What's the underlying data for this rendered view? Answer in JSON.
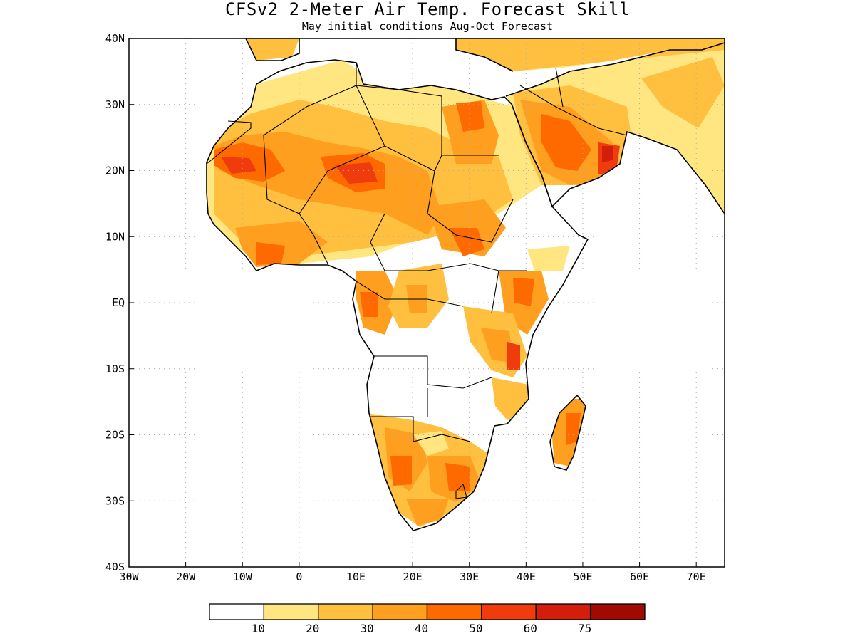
{
  "title": "CFSv2 2-Meter Air Temp. Forecast Skill",
  "subtitle": "May initial conditions  Aug-Oct Forecast",
  "lon_ticks": [
    "30W",
    "20W",
    "10W",
    "0",
    "10E",
    "20E",
    "30E",
    "40E",
    "50E",
    "60E",
    "70E"
  ],
  "lat_ticks": [
    "40N",
    "30N",
    "20N",
    "10N",
    "EQ",
    "10S",
    "20S",
    "30S",
    "40S"
  ],
  "colorbar": {
    "labels": [
      "10",
      "20",
      "30",
      "40",
      "50",
      "60",
      "75"
    ],
    "colors": [
      "#ffffff",
      "#ffe680",
      "#ffbf3f",
      "#ff9f1f",
      "#ff6a00",
      "#f03c0c",
      "#d21e0a",
      "#a00a00"
    ]
  },
  "map_extent": {
    "lon": [
      -30,
      75
    ],
    "lat": [
      -40,
      40
    ]
  }
}
